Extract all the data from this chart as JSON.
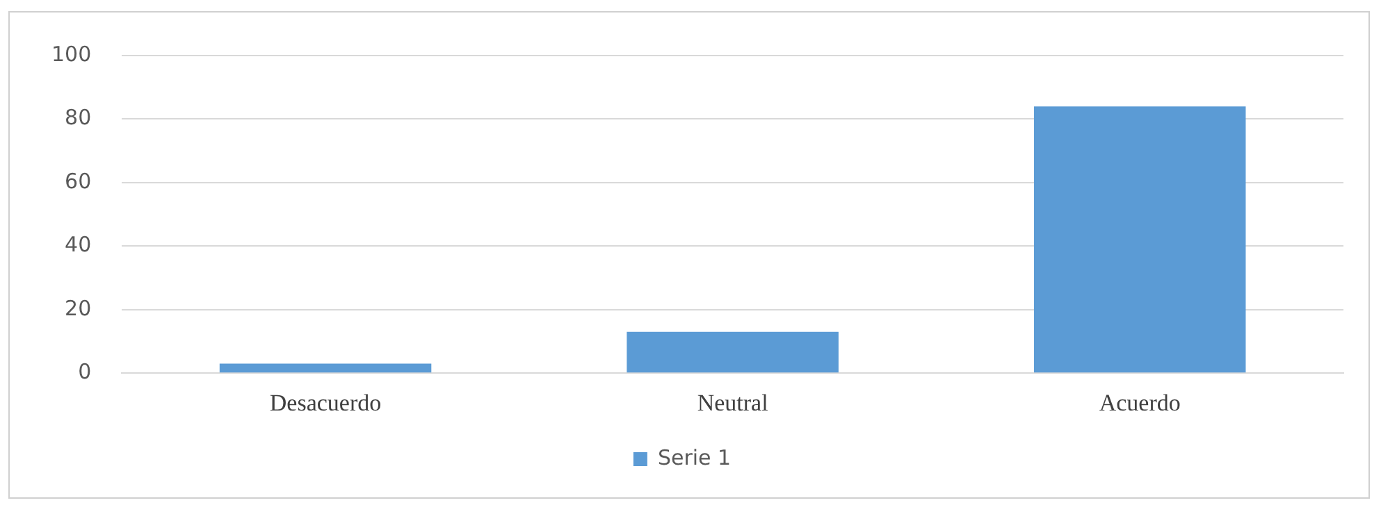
{
  "chart_data": {
    "type": "bar",
    "categories": [
      "Desacuerdo",
      "Neutral",
      "Acuerdo"
    ],
    "series": [
      {
        "name": "Serie 1",
        "color": "#5b9bd5",
        "values": [
          3,
          13,
          84
        ]
      }
    ],
    "ylim": [
      0,
      100
    ],
    "yticks": [
      0,
      20,
      40,
      60,
      80,
      100
    ],
    "grid": "y",
    "legend": "bottom"
  }
}
